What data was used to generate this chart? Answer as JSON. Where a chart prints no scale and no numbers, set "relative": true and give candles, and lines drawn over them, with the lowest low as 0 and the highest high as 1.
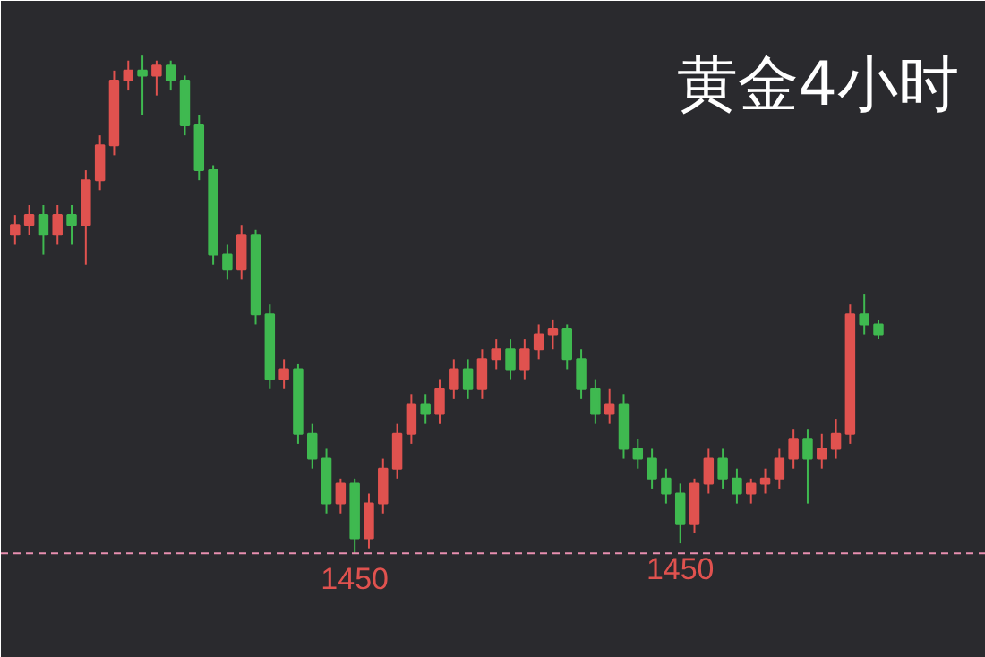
{
  "chart_data": {
    "type": "candlestick",
    "title": "黄金4小时",
    "relative": true,
    "tick_labels": false,
    "grid": false,
    "categories": [
      null,
      null,
      null,
      null,
      null,
      null,
      null,
      null,
      null,
      null,
      null,
      null,
      null,
      null,
      null,
      null,
      null,
      null,
      null,
      null,
      null,
      null,
      null,
      null,
      null,
      null,
      null,
      null,
      null,
      null,
      null,
      null,
      null,
      null,
      null,
      null,
      null,
      null,
      null,
      null,
      null,
      null,
      null,
      null,
      null,
      null,
      null,
      null,
      null,
      null,
      null,
      null,
      null,
      null,
      null,
      null,
      null,
      null,
      null,
      null,
      null,
      null
    ],
    "ohlc": [
      [
        0.64,
        0.68,
        0.62,
        0.66
      ],
      [
        0.66,
        0.7,
        0.64,
        0.68
      ],
      [
        0.68,
        0.7,
        0.6,
        0.64
      ],
      [
        0.64,
        0.7,
        0.62,
        0.68
      ],
      [
        0.68,
        0.7,
        0.62,
        0.66
      ],
      [
        0.66,
        0.77,
        0.58,
        0.75
      ],
      [
        0.75,
        0.84,
        0.73,
        0.82
      ],
      [
        0.82,
        0.97,
        0.8,
        0.95
      ],
      [
        0.95,
        0.99,
        0.93,
        0.97
      ],
      [
        0.97,
        1.0,
        0.88,
        0.96
      ],
      [
        0.96,
        0.99,
        0.92,
        0.98
      ],
      [
        0.98,
        0.99,
        0.93,
        0.95
      ],
      [
        0.95,
        0.96,
        0.84,
        0.86
      ],
      [
        0.86,
        0.88,
        0.75,
        0.77
      ],
      [
        0.77,
        0.78,
        0.58,
        0.6
      ],
      [
        0.6,
        0.62,
        0.55,
        0.57
      ],
      [
        0.57,
        0.66,
        0.55,
        0.64
      ],
      [
        0.64,
        0.65,
        0.46,
        0.48
      ],
      [
        0.48,
        0.5,
        0.33,
        0.35
      ],
      [
        0.35,
        0.39,
        0.33,
        0.37
      ],
      [
        0.37,
        0.38,
        0.22,
        0.24
      ],
      [
        0.24,
        0.26,
        0.17,
        0.19
      ],
      [
        0.19,
        0.21,
        0.08,
        0.1
      ],
      [
        0.1,
        0.15,
        0.08,
        0.14
      ],
      [
        0.14,
        0.15,
        0.0,
        0.03
      ],
      [
        0.03,
        0.12,
        0.01,
        0.1
      ],
      [
        0.1,
        0.19,
        0.08,
        0.17
      ],
      [
        0.17,
        0.26,
        0.15,
        0.24
      ],
      [
        0.24,
        0.32,
        0.22,
        0.3
      ],
      [
        0.3,
        0.32,
        0.26,
        0.28
      ],
      [
        0.28,
        0.35,
        0.26,
        0.33
      ],
      [
        0.33,
        0.39,
        0.31,
        0.37
      ],
      [
        0.37,
        0.39,
        0.31,
        0.33
      ],
      [
        0.33,
        0.41,
        0.31,
        0.39
      ],
      [
        0.39,
        0.43,
        0.37,
        0.41
      ],
      [
        0.41,
        0.43,
        0.35,
        0.37
      ],
      [
        0.37,
        0.43,
        0.35,
        0.41
      ],
      [
        0.41,
        0.46,
        0.39,
        0.44
      ],
      [
        0.44,
        0.47,
        0.41,
        0.45
      ],
      [
        0.45,
        0.46,
        0.37,
        0.39
      ],
      [
        0.39,
        0.41,
        0.31,
        0.33
      ],
      [
        0.33,
        0.35,
        0.26,
        0.28
      ],
      [
        0.28,
        0.33,
        0.26,
        0.3
      ],
      [
        0.3,
        0.32,
        0.19,
        0.21
      ],
      [
        0.21,
        0.23,
        0.17,
        0.19
      ],
      [
        0.19,
        0.21,
        0.13,
        0.15
      ],
      [
        0.15,
        0.17,
        0.1,
        0.12
      ],
      [
        0.12,
        0.14,
        0.02,
        0.06
      ],
      [
        0.06,
        0.15,
        0.04,
        0.14
      ],
      [
        0.14,
        0.21,
        0.12,
        0.19
      ],
      [
        0.19,
        0.21,
        0.13,
        0.15
      ],
      [
        0.15,
        0.17,
        0.1,
        0.12
      ],
      [
        0.12,
        0.15,
        0.1,
        0.14
      ],
      [
        0.14,
        0.17,
        0.12,
        0.15
      ],
      [
        0.15,
        0.21,
        0.13,
        0.19
      ],
      [
        0.19,
        0.25,
        0.17,
        0.23
      ],
      [
        0.23,
        0.25,
        0.1,
        0.19
      ],
      [
        0.19,
        0.24,
        0.17,
        0.21
      ],
      [
        0.21,
        0.27,
        0.19,
        0.24
      ],
      [
        0.24,
        0.5,
        0.22,
        0.48
      ],
      [
        0.48,
        0.52,
        0.44,
        0.46
      ],
      [
        0.46,
        0.47,
        0.43,
        0.44
      ]
    ],
    "colors": [
      "#e0524f",
      "#e0524f",
      "#3fb950",
      "#e0524f",
      "#3fb950",
      "#e0524f",
      "#e0524f",
      "#e0524f",
      "#e0524f",
      "#3fb950",
      "#e0524f",
      "#3fb950",
      "#3fb950",
      "#3fb950",
      "#3fb950",
      "#3fb950",
      "#e0524f",
      "#3fb950",
      "#3fb950",
      "#e0524f",
      "#3fb950",
      "#3fb950",
      "#3fb950",
      "#e0524f",
      "#3fb950",
      "#e0524f",
      "#e0524f",
      "#e0524f",
      "#e0524f",
      "#3fb950",
      "#e0524f",
      "#e0524f",
      "#3fb950",
      "#e0524f",
      "#e0524f",
      "#3fb950",
      "#e0524f",
      "#e0524f",
      "#e0524f",
      "#3fb950",
      "#3fb950",
      "#3fb950",
      "#e0524f",
      "#3fb950",
      "#3fb950",
      "#3fb950",
      "#3fb950",
      "#3fb950",
      "#e0524f",
      "#e0524f",
      "#3fb950",
      "#3fb950",
      "#e0524f",
      "#e0524f",
      "#e0524f",
      "#e0524f",
      "#3fb950",
      "#e0524f",
      "#e0524f",
      "#e0524f",
      "#3fb950",
      "#3fb950"
    ],
    "ref_lines": [
      {
        "axis": "y",
        "value": 0,
        "color": "#e88fb0",
        "line_style": "dashed"
      }
    ],
    "annotations": [
      "1450",
      "1450"
    ]
  }
}
